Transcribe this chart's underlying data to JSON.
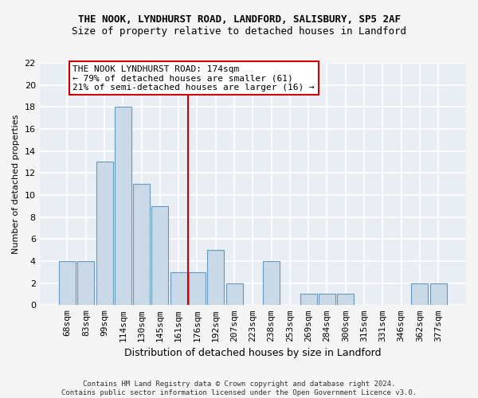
{
  "title": "THE NOOK, LYNDHURST ROAD, LANDFORD, SALISBURY, SP5 2AF",
  "subtitle": "Size of property relative to detached houses in Landford",
  "xlabel": "Distribution of detached houses by size in Landford",
  "ylabel": "Number of detached properties",
  "categories": [
    "68sqm",
    "83sqm",
    "99sqm",
    "114sqm",
    "130sqm",
    "145sqm",
    "161sqm",
    "176sqm",
    "192sqm",
    "207sqm",
    "223sqm",
    "238sqm",
    "253sqm",
    "269sqm",
    "284sqm",
    "300sqm",
    "315sqm",
    "331sqm",
    "346sqm",
    "362sqm",
    "377sqm"
  ],
  "values": [
    4,
    4,
    13,
    18,
    11,
    9,
    3,
    3,
    5,
    2,
    0,
    4,
    0,
    1,
    1,
    1,
    0,
    0,
    0,
    2,
    2
  ],
  "bar_color": "#c9d9e8",
  "bar_edge_color": "#6699bb",
  "vline_x_index": 7,
  "vline_color": "#cc0000",
  "annotation_text": "THE NOOK LYNDHURST ROAD: 174sqm\n← 79% of detached houses are smaller (61)\n21% of semi-detached houses are larger (16) →",
  "annotation_box_color": "#ffffff",
  "annotation_box_edge": "#cc0000",
  "ylim": [
    0,
    22
  ],
  "yticks": [
    0,
    2,
    4,
    6,
    8,
    10,
    12,
    14,
    16,
    18,
    20,
    22
  ],
  "footer": "Contains HM Land Registry data © Crown copyright and database right 2024.\nContains public sector information licensed under the Open Government Licence v3.0.",
  "plot_bg_color": "#e8eef4",
  "grid_color": "#ffffff",
  "fig_bg_color": "#f5f5f5",
  "title_fontsize": 9,
  "subtitle_fontsize": 9,
  "xlabel_fontsize": 9,
  "ylabel_fontsize": 8,
  "tick_fontsize": 8,
  "annotation_fontsize": 8,
  "footer_fontsize": 6.5
}
